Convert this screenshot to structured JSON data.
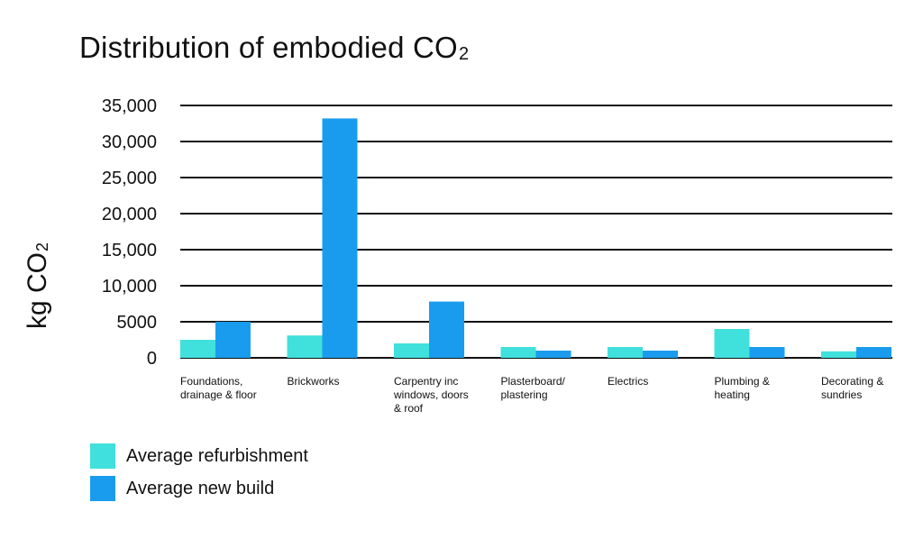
{
  "title": {
    "main": "Distribution of embodied CO",
    "subscript": "2"
  },
  "colors": {
    "refurbishment": "#40e0dc",
    "new_build": "#1a9cee",
    "gridline": "#111111"
  },
  "chart_data": {
    "type": "bar",
    "title": "Distribution of embodied CO2",
    "ylabel": "kg CO2",
    "ylabel_main": "kg CO",
    "ylabel_subscript": "2",
    "xlabel": "",
    "ylim": [
      0,
      35000
    ],
    "ytick_values": [
      0,
      5000,
      10000,
      15000,
      20000,
      25000,
      30000,
      35000
    ],
    "ytick_labels": [
      "0",
      "5000",
      "10,000",
      "15,000",
      "20,000",
      "25,000",
      "30,000",
      "35,000"
    ],
    "grid": true,
    "legend_position": "bottom-left",
    "categories": [
      [
        "Foundations,",
        "drainage & floor"
      ],
      [
        "Brickworks"
      ],
      [
        "Carpentry inc",
        "windows, doors",
        "& roof"
      ],
      [
        "Plasterboard/",
        "plastering"
      ],
      [
        "Electrics"
      ],
      [
        "Plumbing &",
        "heating"
      ],
      [
        "Decorating &",
        "sundries"
      ]
    ],
    "series": [
      {
        "name": "Average refurbishment",
        "values": [
          2500,
          3100,
          2000,
          1500,
          1500,
          4000,
          900
        ]
      },
      {
        "name": "Average new build",
        "values": [
          5000,
          33200,
          7800,
          1000,
          1000,
          1500,
          1500
        ]
      }
    ]
  }
}
